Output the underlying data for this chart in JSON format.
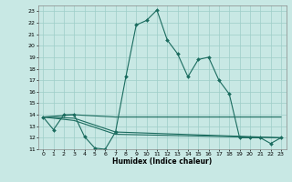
{
  "xlabel": "Humidex (Indice chaleur)",
  "xlim": [
    -0.5,
    23.5
  ],
  "ylim": [
    11,
    23.5
  ],
  "yticks": [
    11,
    12,
    13,
    14,
    15,
    16,
    17,
    18,
    19,
    20,
    21,
    22,
    23
  ],
  "xticks": [
    0,
    1,
    2,
    3,
    4,
    5,
    6,
    7,
    8,
    9,
    10,
    11,
    12,
    13,
    14,
    15,
    16,
    17,
    18,
    19,
    20,
    21,
    22,
    23
  ],
  "background_color": "#c8e8e4",
  "grid_color": "#9ecec8",
  "line_color": "#1a6b5e",
  "line1_x": [
    0,
    1,
    2,
    3,
    4,
    5,
    6,
    7,
    8,
    9,
    10,
    11,
    12,
    13,
    14,
    15,
    16,
    17,
    18,
    19,
    20,
    21,
    22,
    23
  ],
  "line1_y": [
    13.8,
    12.7,
    14.0,
    14.0,
    12.1,
    11.1,
    11.0,
    12.5,
    17.3,
    21.8,
    22.2,
    23.1,
    20.5,
    19.3,
    17.3,
    18.8,
    19.0,
    17.0,
    15.8,
    12.0,
    12.0,
    12.0,
    11.5,
    12.0
  ],
  "line2_x": [
    0,
    3,
    7,
    23
  ],
  "line2_y": [
    13.8,
    14.0,
    13.8,
    13.8
  ],
  "line3_x": [
    0,
    3,
    7,
    23
  ],
  "line3_y": [
    13.8,
    13.7,
    12.5,
    12.0
  ],
  "line4_x": [
    0,
    3,
    7,
    23
  ],
  "line4_y": [
    13.8,
    13.5,
    12.3,
    12.0
  ]
}
